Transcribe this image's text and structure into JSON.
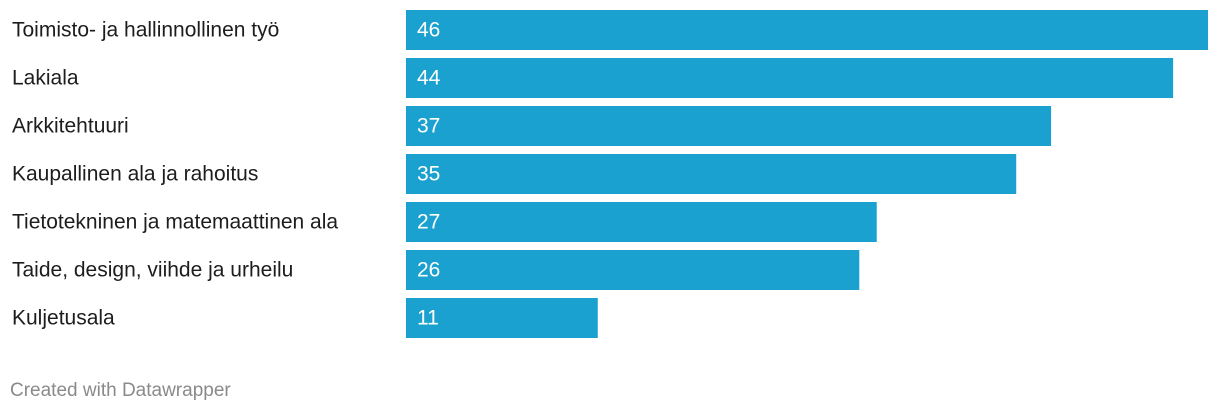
{
  "chart_data": {
    "type": "bar",
    "orientation": "horizontal",
    "categories": [
      "Toimisto- ja hallinnollinen työ",
      "Lakiala",
      "Arkkitehtuuri",
      "Kaupallinen ala ja rahoitus",
      "Tietotekninen ja matemaattinen ala",
      "Taide, design, viihde ja urheilu",
      "Kuljetusala"
    ],
    "values": [
      46,
      44,
      37,
      35,
      27,
      26,
      11
    ],
    "color": "#1ba1cf",
    "credit": "Created with Datawrapper"
  }
}
